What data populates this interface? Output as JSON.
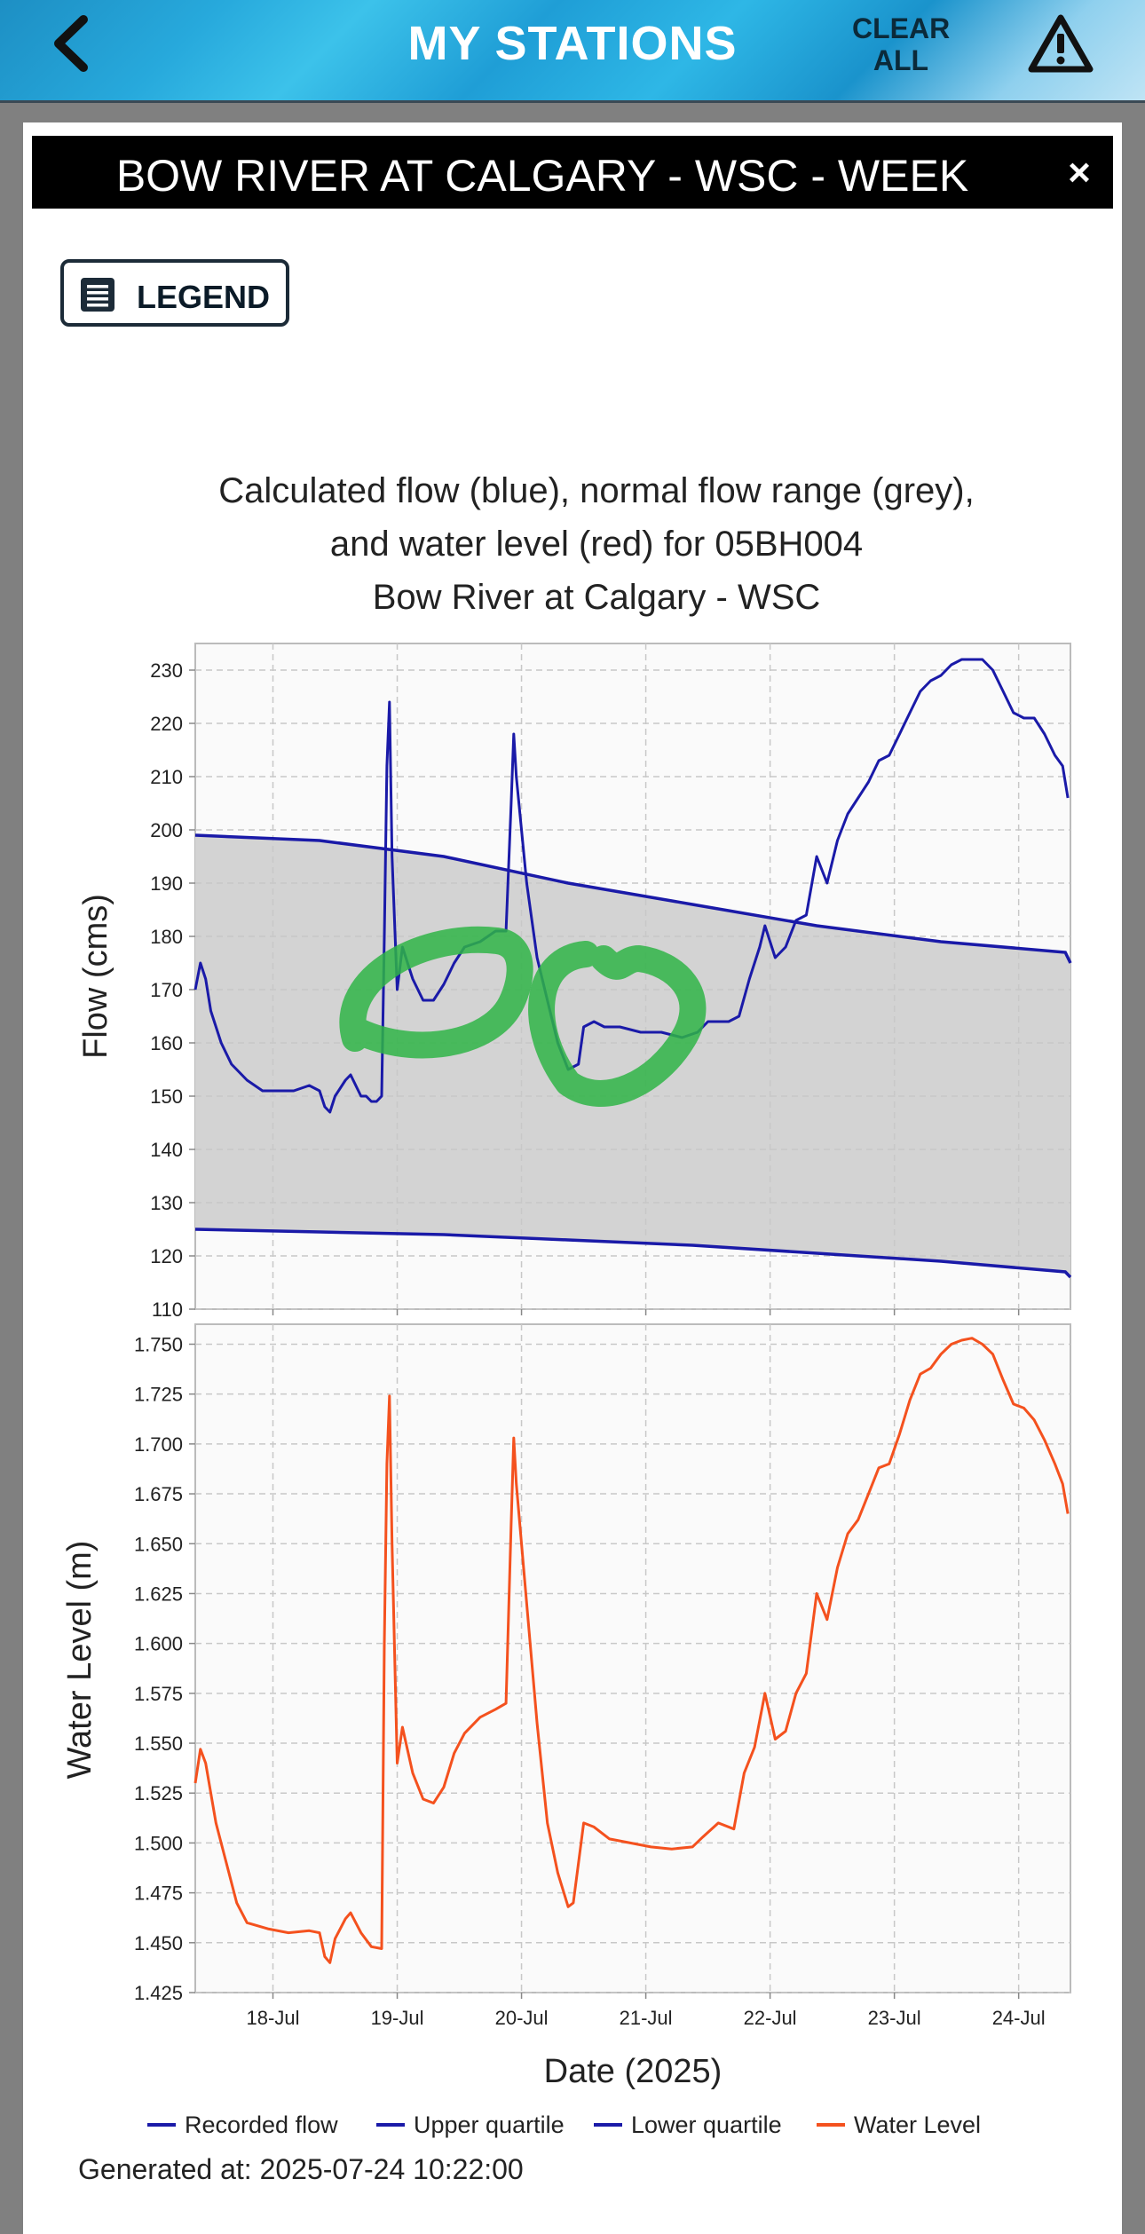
{
  "app": {
    "title": "MY STATIONS",
    "back_icon": "chevron-left-icon",
    "clear_all_label": "CLEAR ALL",
    "warning_icon": "warning-triangle-icon"
  },
  "panel": {
    "title": "BOW RIVER AT CALGARY - WSC - WEEK",
    "close_label": "×",
    "legend_button_label": "LEGEND",
    "legend_icon": "list-icon"
  },
  "colors": {
    "flow": "#1a1aa8",
    "water_level": "#f4511e",
    "normal_range": "#d3d3d3",
    "annotation": "#2fb446"
  },
  "chart_data": {
    "type": "line",
    "title_lines": [
      "Calculated flow (blue), normal flow range (grey),",
      "and water level (red) for 05BH004",
      "Bow River at Calgary - WSC"
    ],
    "xlabel": "Date (2025)",
    "x_tick_labels": [
      "18-Jul",
      "19-Jul",
      "20-Jul",
      "21-Jul",
      "22-Jul",
      "23-Jul",
      "24-Jul"
    ],
    "xlim": [
      "2025-07-17 09:00",
      "2025-07-24 10:00"
    ],
    "flow_panel": {
      "ylabel": "Flow (cms)",
      "ylim": [
        110,
        235
      ],
      "y_ticks": [
        "110",
        "120",
        "130",
        "140",
        "150",
        "160",
        "170",
        "180",
        "190",
        "200",
        "210",
        "220",
        "230"
      ],
      "series": [
        {
          "name": "Recorded flow",
          "points": [
            [
              "2025-07-17 09:00",
              170
            ],
            [
              "2025-07-17 10:00",
              175
            ],
            [
              "2025-07-17 11:00",
              172
            ],
            [
              "2025-07-17 12:00",
              166
            ],
            [
              "2025-07-17 14:00",
              160
            ],
            [
              "2025-07-17 16:00",
              156
            ],
            [
              "2025-07-17 19:00",
              153
            ],
            [
              "2025-07-17 22:00",
              151
            ],
            [
              "2025-07-18 01:00",
              151
            ],
            [
              "2025-07-18 04:00",
              151
            ],
            [
              "2025-07-18 07:00",
              152
            ],
            [
              "2025-07-18 09:00",
              151
            ],
            [
              "2025-07-18 10:00",
              148
            ],
            [
              "2025-07-18 11:00",
              147
            ],
            [
              "2025-07-18 12:00",
              150
            ],
            [
              "2025-07-18 14:00",
              153
            ],
            [
              "2025-07-18 15:00",
              154
            ],
            [
              "2025-07-18 17:00",
              150
            ],
            [
              "2025-07-18 18:00",
              150
            ],
            [
              "2025-07-18 19:00",
              149
            ],
            [
              "2025-07-18 20:00",
              149
            ],
            [
              "2025-07-18 21:00",
              150
            ],
            [
              "2025-07-18 21:30",
              180
            ],
            [
              "2025-07-18 22:00",
              212
            ],
            [
              "2025-07-18 22:30",
              224
            ],
            [
              "2025-07-18 23:00",
              195
            ],
            [
              "2025-07-19 00:00",
              170
            ],
            [
              "2025-07-19 01:00",
              178
            ],
            [
              "2025-07-19 03:00",
              172
            ],
            [
              "2025-07-19 05:00",
              168
            ],
            [
              "2025-07-19 07:00",
              168
            ],
            [
              "2025-07-19 09:00",
              171
            ],
            [
              "2025-07-19 11:00",
              175
            ],
            [
              "2025-07-19 13:00",
              178
            ],
            [
              "2025-07-19 16:00",
              179
            ],
            [
              "2025-07-19 19:00",
              181
            ],
            [
              "2025-07-19 21:00",
              181
            ],
            [
              "2025-07-19 22:00",
              205
            ],
            [
              "2025-07-19 22:30",
              218
            ],
            [
              "2025-07-19 23:00",
              210
            ],
            [
              "2025-07-20 01:00",
              190
            ],
            [
              "2025-07-20 03:00",
              176
            ],
            [
              "2025-07-20 05:00",
              168
            ],
            [
              "2025-07-20 07:00",
              160
            ],
            [
              "2025-07-20 09:00",
              155
            ],
            [
              "2025-07-20 11:00",
              156
            ],
            [
              "2025-07-20 12:00",
              163
            ],
            [
              "2025-07-20 14:00",
              164
            ],
            [
              "2025-07-20 16:00",
              163
            ],
            [
              "2025-07-20 19:00",
              163
            ],
            [
              "2025-07-20 23:00",
              162
            ],
            [
              "2025-07-21 03:00",
              162
            ],
            [
              "2025-07-21 07:00",
              161
            ],
            [
              "2025-07-21 10:00",
              162
            ],
            [
              "2025-07-21 12:00",
              164
            ],
            [
              "2025-07-21 16:00",
              164
            ],
            [
              "2025-07-21 18:00",
              165
            ],
            [
              "2025-07-21 20:00",
              172
            ],
            [
              "2025-07-21 22:00",
              178
            ],
            [
              "2025-07-21 23:00",
              182
            ],
            [
              "2025-07-22 01:00",
              176
            ],
            [
              "2025-07-22 03:00",
              178
            ],
            [
              "2025-07-22 05:00",
              183
            ],
            [
              "2025-07-22 07:00",
              184
            ],
            [
              "2025-07-22 09:00",
              195
            ],
            [
              "2025-07-22 11:00",
              190
            ],
            [
              "2025-07-22 13:00",
              198
            ],
            [
              "2025-07-22 15:00",
              203
            ],
            [
              "2025-07-22 17:00",
              206
            ],
            [
              "2025-07-22 19:00",
              209
            ],
            [
              "2025-07-22 21:00",
              213
            ],
            [
              "2025-07-22 23:00",
              214
            ],
            [
              "2025-07-23 01:00",
              218
            ],
            [
              "2025-07-23 03:00",
              222
            ],
            [
              "2025-07-23 05:00",
              226
            ],
            [
              "2025-07-23 07:00",
              228
            ],
            [
              "2025-07-23 09:00",
              229
            ],
            [
              "2025-07-23 11:00",
              231
            ],
            [
              "2025-07-23 13:00",
              232
            ],
            [
              "2025-07-23 15:00",
              232
            ],
            [
              "2025-07-23 17:00",
              232
            ],
            [
              "2025-07-23 19:00",
              230
            ],
            [
              "2025-07-23 21:00",
              226
            ],
            [
              "2025-07-23 23:00",
              222
            ],
            [
              "2025-07-24 01:00",
              221
            ],
            [
              "2025-07-24 03:00",
              221
            ],
            [
              "2025-07-24 05:00",
              218
            ],
            [
              "2025-07-24 07:00",
              214
            ],
            [
              "2025-07-24 08:30",
              212
            ],
            [
              "2025-07-24 09:30",
              206
            ]
          ]
        },
        {
          "name": "Upper quartile",
          "points": [
            [
              "2025-07-17 09:00",
              199
            ],
            [
              "2025-07-18 09:00",
              198
            ],
            [
              "2025-07-19 09:00",
              195
            ],
            [
              "2025-07-20 09:00",
              190
            ],
            [
              "2025-07-21 09:00",
              186
            ],
            [
              "2025-07-22 09:00",
              182
            ],
            [
              "2025-07-23 09:00",
              179
            ],
            [
              "2025-07-24 09:00",
              177
            ],
            [
              "2025-07-24 10:00",
              175
            ]
          ]
        },
        {
          "name": "Lower quartile",
          "points": [
            [
              "2025-07-17 09:00",
              125
            ],
            [
              "2025-07-18 09:00",
              124.5
            ],
            [
              "2025-07-19 09:00",
              124
            ],
            [
              "2025-07-20 09:00",
              123
            ],
            [
              "2025-07-21 09:00",
              122
            ],
            [
              "2025-07-22 09:00",
              120.5
            ],
            [
              "2025-07-23 09:00",
              119
            ],
            [
              "2025-07-24 09:00",
              117
            ],
            [
              "2025-07-24 10:00",
              116
            ]
          ]
        }
      ]
    },
    "level_panel": {
      "ylabel": "Water Level (m)",
      "ylim": [
        1.425,
        1.76
      ],
      "y_ticks": [
        "1.425",
        "1.450",
        "1.475",
        "1.500",
        "1.525",
        "1.550",
        "1.575",
        "1.600",
        "1.625",
        "1.650",
        "1.675",
        "1.700",
        "1.725",
        "1.750"
      ],
      "series": [
        {
          "name": "Water Level",
          "points": [
            [
              "2025-07-17 09:00",
              1.53
            ],
            [
              "2025-07-17 10:00",
              1.547
            ],
            [
              "2025-07-17 11:00",
              1.54
            ],
            [
              "2025-07-17 13:00",
              1.51
            ],
            [
              "2025-07-17 15:00",
              1.49
            ],
            [
              "2025-07-17 17:00",
              1.47
            ],
            [
              "2025-07-17 19:00",
              1.46
            ],
            [
              "2025-07-17 23:00",
              1.457
            ],
            [
              "2025-07-18 03:00",
              1.455
            ],
            [
              "2025-07-18 07:00",
              1.456
            ],
            [
              "2025-07-18 09:00",
              1.455
            ],
            [
              "2025-07-18 10:00",
              1.443
            ],
            [
              "2025-07-18 11:00",
              1.44
            ],
            [
              "2025-07-18 12:00",
              1.452
            ],
            [
              "2025-07-18 14:00",
              1.462
            ],
            [
              "2025-07-18 15:00",
              1.465
            ],
            [
              "2025-07-18 17:00",
              1.455
            ],
            [
              "2025-07-18 19:00",
              1.448
            ],
            [
              "2025-07-18 21:00",
              1.447
            ],
            [
              "2025-07-18 21:30",
              1.6
            ],
            [
              "2025-07-18 22:00",
              1.69
            ],
            [
              "2025-07-18 22:30",
              1.724
            ],
            [
              "2025-07-18 23:00",
              1.65
            ],
            [
              "2025-07-19 00:00",
              1.54
            ],
            [
              "2025-07-19 01:00",
              1.558
            ],
            [
              "2025-07-19 03:00",
              1.535
            ],
            [
              "2025-07-19 05:00",
              1.522
            ],
            [
              "2025-07-19 07:00",
              1.52
            ],
            [
              "2025-07-19 09:00",
              1.528
            ],
            [
              "2025-07-19 11:00",
              1.545
            ],
            [
              "2025-07-19 13:00",
              1.555
            ],
            [
              "2025-07-19 16:00",
              1.563
            ],
            [
              "2025-07-19 19:00",
              1.567
            ],
            [
              "2025-07-19 21:00",
              1.57
            ],
            [
              "2025-07-19 22:00",
              1.66
            ],
            [
              "2025-07-19 22:30",
              1.703
            ],
            [
              "2025-07-19 23:00",
              1.68
            ],
            [
              "2025-07-20 01:00",
              1.62
            ],
            [
              "2025-07-20 03:00",
              1.56
            ],
            [
              "2025-07-20 05:00",
              1.51
            ],
            [
              "2025-07-20 07:00",
              1.485
            ],
            [
              "2025-07-20 09:00",
              1.468
            ],
            [
              "2025-07-20 10:00",
              1.47
            ],
            [
              "2025-07-20 12:00",
              1.51
            ],
            [
              "2025-07-20 14:00",
              1.508
            ],
            [
              "2025-07-20 17:00",
              1.502
            ],
            [
              "2025-07-20 21:00",
              1.5
            ],
            [
              "2025-07-21 01:00",
              1.498
            ],
            [
              "2025-07-21 05:00",
              1.497
            ],
            [
              "2025-07-21 09:00",
              1.498
            ],
            [
              "2025-07-21 11:00",
              1.503
            ],
            [
              "2025-07-21 14:00",
              1.51
            ],
            [
              "2025-07-21 17:00",
              1.507
            ],
            [
              "2025-07-21 19:00",
              1.535
            ],
            [
              "2025-07-21 21:00",
              1.548
            ],
            [
              "2025-07-21 23:00",
              1.575
            ],
            [
              "2025-07-22 01:00",
              1.552
            ],
            [
              "2025-07-22 03:00",
              1.556
            ],
            [
              "2025-07-22 05:00",
              1.575
            ],
            [
              "2025-07-22 07:00",
              1.585
            ],
            [
              "2025-07-22 09:00",
              1.625
            ],
            [
              "2025-07-22 11:00",
              1.612
            ],
            [
              "2025-07-22 13:00",
              1.638
            ],
            [
              "2025-07-22 15:00",
              1.655
            ],
            [
              "2025-07-22 17:00",
              1.662
            ],
            [
              "2025-07-22 19:00",
              1.675
            ],
            [
              "2025-07-22 21:00",
              1.688
            ],
            [
              "2025-07-22 23:00",
              1.69
            ],
            [
              "2025-07-23 01:00",
              1.705
            ],
            [
              "2025-07-23 03:00",
              1.722
            ],
            [
              "2025-07-23 05:00",
              1.735
            ],
            [
              "2025-07-23 07:00",
              1.738
            ],
            [
              "2025-07-23 09:00",
              1.745
            ],
            [
              "2025-07-23 11:00",
              1.75
            ],
            [
              "2025-07-23 13:00",
              1.752
            ],
            [
              "2025-07-23 15:00",
              1.753
            ],
            [
              "2025-07-23 17:00",
              1.75
            ],
            [
              "2025-07-23 19:00",
              1.745
            ],
            [
              "2025-07-23 21:00",
              1.732
            ],
            [
              "2025-07-23 23:00",
              1.72
            ],
            [
              "2025-07-24 01:00",
              1.718
            ],
            [
              "2025-07-24 03:00",
              1.712
            ],
            [
              "2025-07-24 05:00",
              1.702
            ],
            [
              "2025-07-24 07:00",
              1.69
            ],
            [
              "2025-07-24 08:30",
              1.68
            ],
            [
              "2025-07-24 09:30",
              1.665
            ]
          ]
        }
      ]
    },
    "normal_flow_range": "grey band between Upper quartile and Lower quartile",
    "grid": true,
    "legend_position": "bottom",
    "legend": [
      {
        "label": "Recorded flow",
        "color": "#1a1aa8"
      },
      {
        "label": "Upper quartile",
        "color": "#1a1aa8"
      },
      {
        "label": "Lower quartile",
        "color": "#1a1aa8"
      },
      {
        "label": "Water Level",
        "color": "#f4511e"
      }
    ],
    "generated_at": "Generated at: 2025-07-24 10:22:00"
  }
}
